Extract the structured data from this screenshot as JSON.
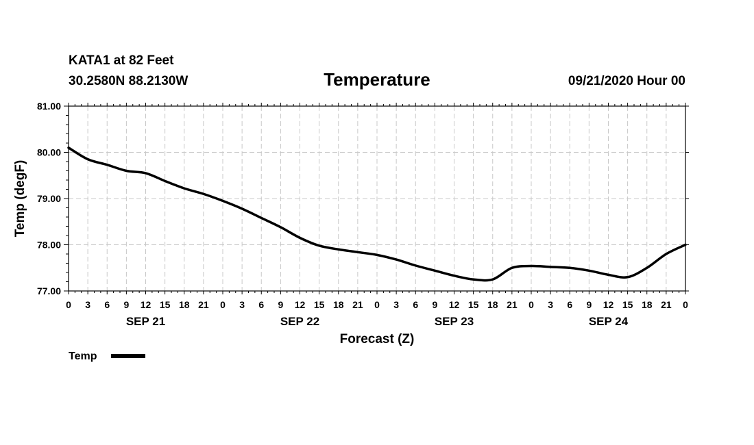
{
  "header": {
    "station": "KATA1 at 82 Feet",
    "location": "30.2580N 88.2130W",
    "title": "Temperature",
    "timestamp": "09/21/2020 Hour 00"
  },
  "legend": {
    "label": "Temp"
  },
  "chart_data": {
    "type": "line",
    "title": "Temperature",
    "xlabel": "Forecast (Z)",
    "ylabel": "Temp (degF)",
    "ylim": [
      77.0,
      81.0
    ],
    "xlim": [
      0,
      96
    ],
    "yticks": [
      "77.00",
      "78.00",
      "79.00",
      "80.00",
      "81.00"
    ],
    "ytick_values": [
      77,
      78,
      79,
      80,
      81
    ],
    "xticks": [
      0,
      3,
      6,
      9,
      12,
      15,
      18,
      21,
      24,
      27,
      30,
      33,
      36,
      39,
      42,
      45,
      48,
      51,
      54,
      57,
      60,
      63,
      66,
      69,
      72,
      75,
      78,
      81,
      84,
      87,
      90,
      93,
      96
    ],
    "xtick_labels": [
      "0",
      "3",
      "6",
      "9",
      "12",
      "15",
      "18",
      "21",
      "0",
      "3",
      "6",
      "9",
      "12",
      "15",
      "18",
      "21",
      "0",
      "3",
      "6",
      "9",
      "12",
      "15",
      "18",
      "21",
      "0",
      "3",
      "6",
      "9",
      "12",
      "15",
      "18",
      "21",
      "0"
    ],
    "day_labels": [
      {
        "label": "SEP 21",
        "hour": 12
      },
      {
        "label": "SEP 22",
        "hour": 36
      },
      {
        "label": "SEP 23",
        "hour": 60
      },
      {
        "label": "SEP 24",
        "hour": 84
      }
    ],
    "grid": true,
    "series": [
      {
        "name": "Temp",
        "x": [
          0,
          3,
          6,
          9,
          12,
          15,
          18,
          21,
          24,
          27,
          30,
          33,
          36,
          39,
          42,
          45,
          48,
          51,
          54,
          57,
          60,
          63,
          66,
          69,
          72,
          75,
          78,
          81,
          84,
          87,
          90,
          93,
          96
        ],
        "values": [
          80.1,
          79.85,
          79.73,
          79.6,
          79.55,
          79.38,
          79.22,
          79.1,
          78.95,
          78.78,
          78.58,
          78.38,
          78.15,
          77.98,
          77.9,
          77.84,
          77.78,
          77.68,
          77.55,
          77.44,
          77.33,
          77.25,
          77.25,
          77.5,
          77.54,
          77.52,
          77.5,
          77.44,
          77.35,
          77.3,
          77.5,
          77.8,
          78.0
        ]
      }
    ]
  }
}
